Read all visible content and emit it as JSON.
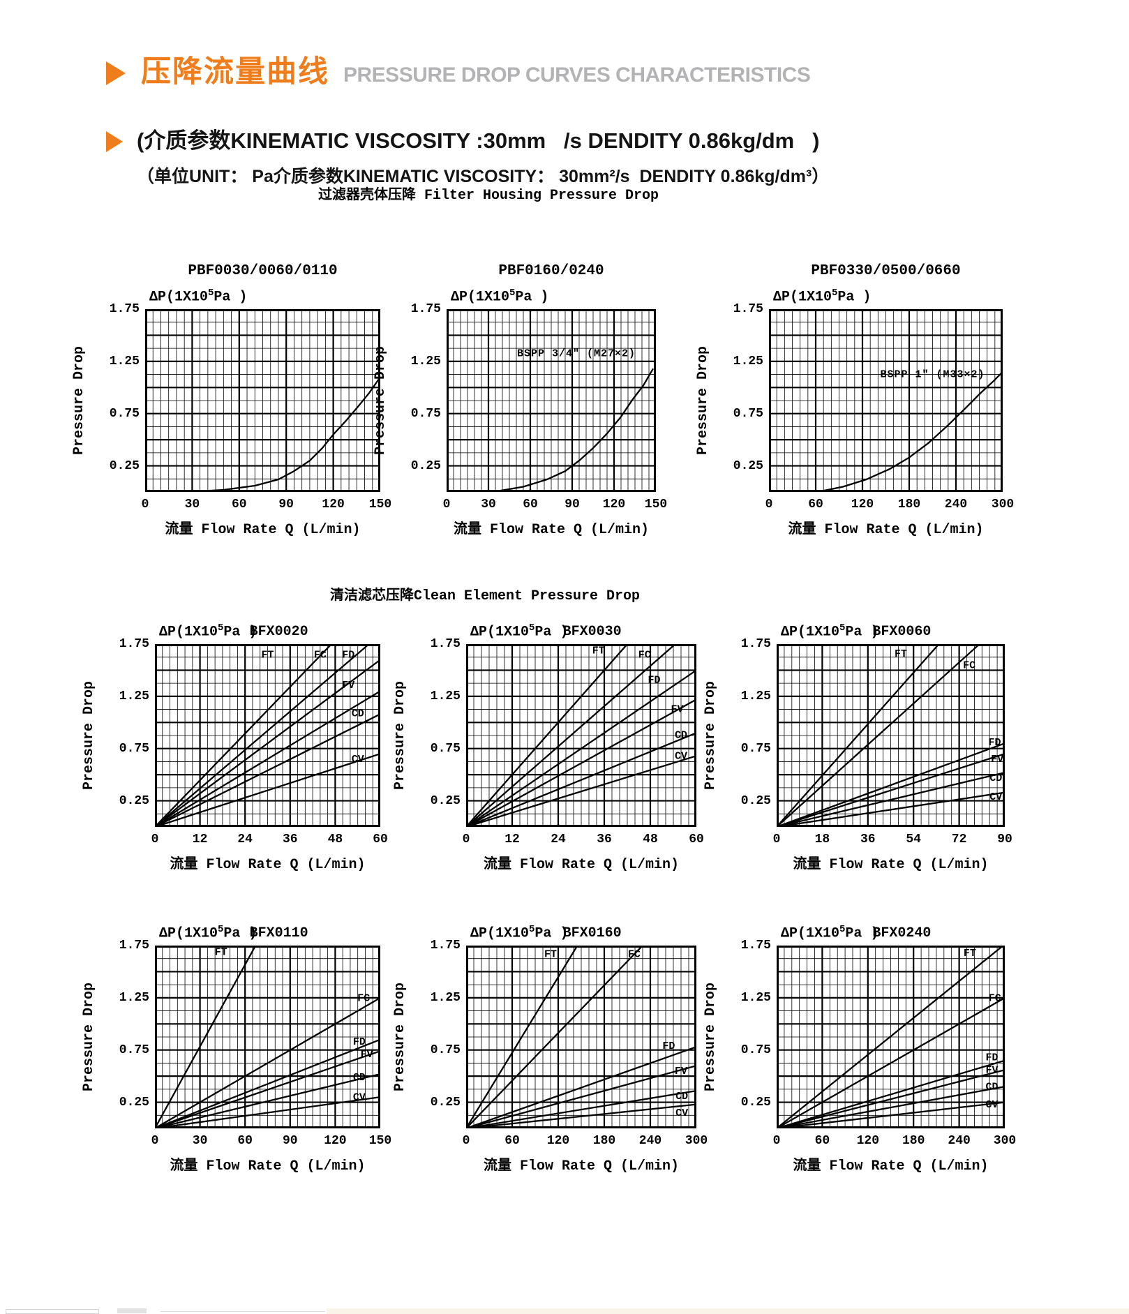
{
  "page": {
    "title_cn": "压降流量曲线",
    "title_en": "PRESSURE DROP CURVES CHARACTERISTICS",
    "subtitle1": "(介质参数KINEMATIC VISCOSITY :30mm   /s DENDITY 0.86kg/dm   )",
    "subtitle2": "（单位UNIT： Pa介质参数KINEMATIC VISCOSITY： 30mm²/s  DENDITY 0.86kg/dm³）",
    "accent_color": "#ef7d1b",
    "title_en_color": "#b3b3b6"
  },
  "sections": [
    {
      "title": "过滤器壳体压降 Filter Housing Pressure Drop"
    },
    {
      "title": "清洁滤芯压降Clean Element Pressure Drop"
    }
  ],
  "axis": {
    "dp_prefix": "ΔP(1X10",
    "dp_sup": "5",
    "dp_suffix": "Pa )",
    "y_ticks": [
      "1.75",
      "1.25",
      "0.75",
      "0.25"
    ],
    "y_side_label": "Pressure Drop",
    "x_label": "流量 Flow Rate  Q (L/min)",
    "y_max": 1.75,
    "grid": "on"
  },
  "chart_data": [
    {
      "type": "line",
      "name": "PBF0030/0060/0110",
      "group": "filter-housing",
      "x_ticks": [
        "0",
        "30",
        "60",
        "90",
        "120",
        "150"
      ],
      "x_max": 150,
      "y_max": 1.75,
      "annotation": null,
      "series": [
        {
          "label": null,
          "points": [
            [
              25,
              0
            ],
            [
              50,
              0.02
            ],
            [
              70,
              0.06
            ],
            [
              85,
              0.12
            ],
            [
              95,
              0.2
            ],
            [
              105,
              0.3
            ],
            [
              113,
              0.42
            ],
            [
              120,
              0.55
            ],
            [
              128,
              0.68
            ],
            [
              136,
              0.82
            ],
            [
              143,
              0.95
            ],
            [
              150,
              1.1
            ]
          ]
        }
      ]
    },
    {
      "type": "line",
      "name": "PBF0160/0240",
      "group": "filter-housing",
      "x_ticks": [
        "0",
        "30",
        "60",
        "90",
        "120",
        "150"
      ],
      "x_max": 150,
      "y_max": 1.75,
      "annotation": {
        "text": "BSPP 3/4\" (M27×2)",
        "x": 93,
        "y": 1.3
      },
      "series": [
        {
          "label": null,
          "points": [
            [
              33,
              0
            ],
            [
              55,
              0.05
            ],
            [
              72,
              0.12
            ],
            [
              85,
              0.2
            ],
            [
              95,
              0.3
            ],
            [
              105,
              0.42
            ],
            [
              115,
              0.56
            ],
            [
              125,
              0.72
            ],
            [
              133,
              0.88
            ],
            [
              141,
              1.02
            ],
            [
              148,
              1.18
            ]
          ]
        }
      ]
    },
    {
      "type": "line",
      "name": "PBF0330/0500/0660",
      "group": "filter-housing",
      "x_ticks": [
        "0",
        "60",
        "120",
        "180",
        "240",
        "300"
      ],
      "x_max": 300,
      "y_max": 1.75,
      "annotation": {
        "text": "BSPP 1\" (M33×2)",
        "x": 210,
        "y": 1.1
      },
      "series": [
        {
          "label": null,
          "points": [
            [
              62,
              0
            ],
            [
              95,
              0.05
            ],
            [
              125,
              0.12
            ],
            [
              155,
              0.22
            ],
            [
              180,
              0.33
            ],
            [
              205,
              0.47
            ],
            [
              230,
              0.64
            ],
            [
              252,
              0.8
            ],
            [
              272,
              0.95
            ],
            [
              288,
              1.06
            ],
            [
              300,
              1.15
            ]
          ]
        }
      ]
    },
    {
      "type": "line",
      "name": "BFX0020",
      "group": "clean-element",
      "x_ticks": [
        "0",
        "12",
        "24",
        "36",
        "48",
        "60"
      ],
      "x_max": 60,
      "y_max": 1.75,
      "annotation": null,
      "series": [
        {
          "label": "FT",
          "points": [
            [
              0,
              0
            ],
            [
              47,
              1.75
            ]
          ],
          "label_pos": [
            30,
            1.62
          ]
        },
        {
          "label": "FC",
          "points": [
            [
              0,
              0
            ],
            [
              57,
              1.75
            ]
          ],
          "label_pos": [
            44,
            1.62
          ]
        },
        {
          "label": "FD",
          "points": [
            [
              0,
              0
            ],
            [
              60,
              1.6
            ]
          ],
          "label_pos": [
            51.5,
            1.62
          ]
        },
        {
          "label": "FV",
          "points": [
            [
              0,
              0
            ],
            [
              60,
              1.3
            ]
          ],
          "label_pos": [
            51.5,
            1.33
          ]
        },
        {
          "label": "CD",
          "points": [
            [
              0,
              0
            ],
            [
              60,
              1.08
            ]
          ],
          "label_pos": [
            54,
            1.06
          ]
        },
        {
          "label": "CV",
          "points": [
            [
              0,
              0
            ],
            [
              60,
              0.7
            ]
          ],
          "label_pos": [
            54,
            0.62
          ]
        }
      ]
    },
    {
      "type": "line",
      "name": "BFX0030",
      "group": "clean-element",
      "x_ticks": [
        "0",
        "12",
        "24",
        "36",
        "48",
        "60"
      ],
      "x_max": 60,
      "y_max": 1.75,
      "annotation": null,
      "series": [
        {
          "label": "FT",
          "points": [
            [
              0,
              0
            ],
            [
              42,
              1.75
            ]
          ],
          "label_pos": [
            34.5,
            1.66
          ]
        },
        {
          "label": "FC",
          "points": [
            [
              0,
              0
            ],
            [
              54.5,
              1.75
            ]
          ],
          "label_pos": [
            46.5,
            1.62
          ]
        },
        {
          "label": "FD",
          "points": [
            [
              0,
              0
            ],
            [
              60,
              1.5
            ]
          ],
          "label_pos": [
            49,
            1.38
          ]
        },
        {
          "label": "FV",
          "points": [
            [
              0,
              0
            ],
            [
              60,
              1.22
            ]
          ],
          "label_pos": [
            55,
            1.1
          ]
        },
        {
          "label": "CD",
          "points": [
            [
              0,
              0
            ],
            [
              60,
              0.9
            ]
          ],
          "label_pos": [
            56,
            0.85
          ]
        },
        {
          "label": "CV",
          "points": [
            [
              0,
              0
            ],
            [
              60,
              0.68
            ]
          ],
          "label_pos": [
            56,
            0.65
          ]
        }
      ]
    },
    {
      "type": "line",
      "name": "BFX0060",
      "group": "clean-element",
      "x_ticks": [
        "0",
        "18",
        "36",
        "54",
        "72",
        "90"
      ],
      "x_max": 90,
      "y_max": 1.75,
      "annotation": null,
      "series": [
        {
          "label": "FT",
          "points": [
            [
              0,
              0
            ],
            [
              64,
              1.75
            ]
          ],
          "label_pos": [
            49,
            1.63
          ]
        },
        {
          "label": "FC",
          "points": [
            [
              0,
              0
            ],
            [
              80,
              1.75
            ]
          ],
          "label_pos": [
            76,
            1.52
          ]
        },
        {
          "label": "FD",
          "points": [
            [
              0,
              0
            ],
            [
              90,
              0.8
            ]
          ],
          "label_pos": [
            86,
            0.78
          ]
        },
        {
          "label": "FV",
          "points": [
            [
              0,
              0
            ],
            [
              90,
              0.7
            ]
          ],
          "label_pos": [
            87,
            0.62
          ]
        },
        {
          "label": "CD",
          "points": [
            [
              0,
              0
            ],
            [
              90,
              0.52
            ]
          ],
          "label_pos": [
            86.5,
            0.44
          ]
        },
        {
          "label": "CV",
          "points": [
            [
              0,
              0
            ],
            [
              90,
              0.33
            ]
          ],
          "label_pos": [
            86.5,
            0.26
          ]
        }
      ]
    },
    {
      "type": "line",
      "name": "BFX0110",
      "group": "clean-element",
      "x_ticks": [
        "0",
        "30",
        "60",
        "90",
        "120",
        "150"
      ],
      "x_max": 150,
      "y_max": 1.75,
      "annotation": null,
      "series": [
        {
          "label": "FT",
          "points": [
            [
              0,
              0
            ],
            [
              67,
              1.75
            ]
          ],
          "label_pos": [
            44,
            1.66
          ]
        },
        {
          "label": "FC",
          "points": [
            [
              0,
              0
            ],
            [
              150,
              1.25
            ]
          ],
          "label_pos": [
            139,
            1.22
          ]
        },
        {
          "label": "FD",
          "points": [
            [
              0,
              0
            ],
            [
              150,
              0.85
            ]
          ],
          "label_pos": [
            136,
            0.8
          ]
        },
        {
          "label": "FV",
          "points": [
            [
              0,
              0
            ],
            [
              150,
              0.74
            ]
          ],
          "label_pos": [
            141,
            0.68
          ]
        },
        {
          "label": "CD",
          "points": [
            [
              0,
              0
            ],
            [
              150,
              0.52
            ]
          ],
          "label_pos": [
            136,
            0.46
          ]
        },
        {
          "label": "CV",
          "points": [
            [
              0,
              0
            ],
            [
              150,
              0.3
            ]
          ],
          "label_pos": [
            136,
            0.27
          ]
        }
      ]
    },
    {
      "type": "line",
      "name": "BFX0160",
      "group": "clean-element",
      "x_ticks": [
        "0",
        "60",
        "120",
        "180",
        "240",
        "300"
      ],
      "x_max": 300,
      "y_max": 1.75,
      "annotation": null,
      "series": [
        {
          "label": "FT",
          "points": [
            [
              0,
              0
            ],
            [
              145,
              1.75
            ]
          ],
          "label_pos": [
            110,
            1.64
          ]
        },
        {
          "label": "FC",
          "points": [
            [
              0,
              0
            ],
            [
              230,
              1.75
            ]
          ],
          "label_pos": [
            219,
            1.64
          ]
        },
        {
          "label": "FD",
          "points": [
            [
              0,
              0
            ],
            [
              300,
              0.78
            ]
          ],
          "label_pos": [
            264,
            0.76
          ]
        },
        {
          "label": "FV",
          "points": [
            [
              0,
              0
            ],
            [
              300,
              0.6
            ]
          ],
          "label_pos": [
            280,
            0.52
          ]
        },
        {
          "label": "CD",
          "points": [
            [
              0,
              0
            ],
            [
              300,
              0.36
            ]
          ],
          "label_pos": [
            281,
            0.28
          ]
        },
        {
          "label": "CV",
          "points": [
            [
              0,
              0
            ],
            [
              300,
              0.23
            ]
          ],
          "label_pos": [
            281,
            0.12
          ]
        }
      ]
    },
    {
      "type": "line",
      "name": "BFX0240",
      "group": "clean-element",
      "x_ticks": [
        "0",
        "60",
        "120",
        "180",
        "240",
        "300"
      ],
      "x_max": 300,
      "y_max": 1.75,
      "annotation": null,
      "series": [
        {
          "label": "FT",
          "points": [
            [
              0,
              0
            ],
            [
              298,
              1.75
            ]
          ],
          "label_pos": [
            254,
            1.65
          ]
        },
        {
          "label": "FC",
          "points": [
            [
              0,
              0
            ],
            [
              300,
              1.25
            ]
          ],
          "label_pos": [
            287,
            1.22
          ]
        },
        {
          "label": "FD",
          "points": [
            [
              0,
              0
            ],
            [
              300,
              0.65
            ]
          ],
          "label_pos": [
            283,
            0.65
          ]
        },
        {
          "label": "FV",
          "points": [
            [
              0,
              0
            ],
            [
              300,
              0.56
            ]
          ],
          "label_pos": [
            283,
            0.53
          ]
        },
        {
          "label": "CD",
          "points": [
            [
              0,
              0
            ],
            [
              300,
              0.4
            ]
          ],
          "label_pos": [
            283,
            0.37
          ]
        },
        {
          "label": "CV",
          "points": [
            [
              0,
              0
            ],
            [
              300,
              0.25
            ]
          ],
          "label_pos": [
            283,
            0.2
          ]
        }
      ]
    }
  ]
}
